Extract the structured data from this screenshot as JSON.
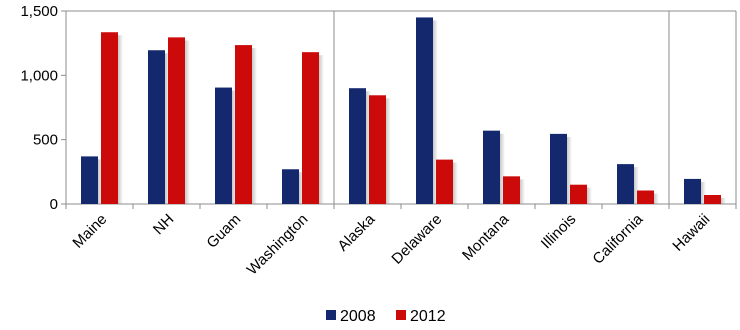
{
  "chart_data": {
    "type": "bar",
    "categories": [
      "Maine",
      "NH",
      "Guam",
      "Washington",
      "Alaska",
      "Delaware",
      "Montana",
      "Illinois",
      "California",
      "Hawaii"
    ],
    "series": [
      {
        "name": "2008",
        "color": "#14286e",
        "values": [
          370,
          1195,
          905,
          270,
          900,
          1450,
          570,
          545,
          310,
          195
        ]
      },
      {
        "name": "2012",
        "color": "#cc0a0a",
        "values": [
          1335,
          1295,
          1235,
          1180,
          845,
          345,
          215,
          150,
          105,
          70
        ]
      }
    ],
    "y_ticks": [
      "0",
      "500",
      "1,000",
      "1,500"
    ],
    "y_tick_values": [
      0,
      500,
      1000,
      1500
    ],
    "ylim": [
      0,
      1500
    ],
    "group_separators_after": [
      "Washington",
      "California"
    ],
    "legend_position": "bottom",
    "grid": false
  }
}
